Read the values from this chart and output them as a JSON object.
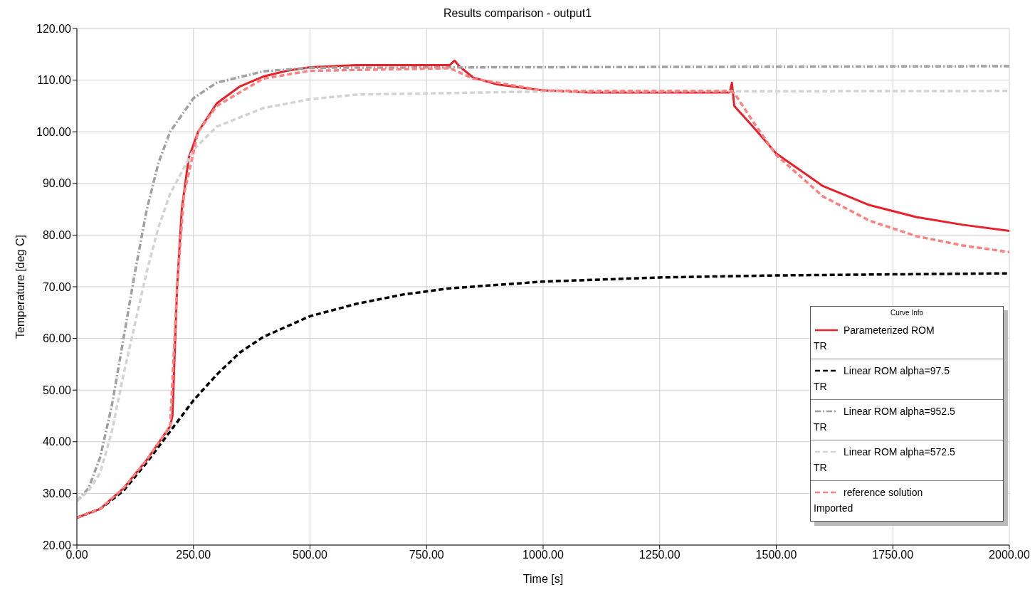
{
  "chart_data": {
    "type": "line",
    "title": "Results comparison - output1",
    "xlabel": "Time [s]",
    "ylabel": "Temperature [deg C]",
    "legend_title": "Curve Info",
    "annotations": [
      "TR",
      "TR",
      "TR",
      "TR",
      "Imported"
    ],
    "xlim": [
      0,
      2000
    ],
    "xticks": [
      {
        "value": 0,
        "label": "0.00"
      },
      {
        "value": 250,
        "label": "250.00"
      },
      {
        "value": 500,
        "label": "500.00"
      },
      {
        "value": 750,
        "label": "750.00"
      },
      {
        "value": 1000,
        "label": "1000.00"
      },
      {
        "value": 1250,
        "label": "1250.00"
      },
      {
        "value": 1500,
        "label": "1500.00"
      },
      {
        "value": 1750,
        "label": "1750.00"
      },
      {
        "value": 2000,
        "label": "2000.00"
      }
    ],
    "ylim": [
      20,
      120
    ],
    "yticks": [
      {
        "value": 20,
        "label": "20.00"
      },
      {
        "value": 30,
        "label": "30.00"
      },
      {
        "value": 40,
        "label": "40.00"
      },
      {
        "value": 50,
        "label": "50.00"
      },
      {
        "value": 60,
        "label": "60.00"
      },
      {
        "value": 70,
        "label": "70.00"
      },
      {
        "value": 80,
        "label": "80.00"
      },
      {
        "value": 90,
        "label": "90.00"
      },
      {
        "value": 100,
        "label": "100.00"
      },
      {
        "value": 110,
        "label": "110.00"
      },
      {
        "value": 120,
        "label": "120.00"
      }
    ],
    "grid": true,
    "legend": "bottom right",
    "marker": "none",
    "series": [
      {
        "name": "Parameterized ROM",
        "color": "#e8202a",
        "line_style": "solid",
        "x": [
          0,
          50,
          100,
          150,
          200,
          205,
          215,
          225,
          240,
          260,
          300,
          350,
          400,
          450,
          500,
          600,
          800,
          810,
          820,
          850,
          900,
          1000,
          1100,
          1400,
          1405,
          1410,
          1450,
          1500,
          1600,
          1700,
          1800,
          1900,
          2000
        ],
        "values": [
          25.3,
          27,
          31,
          36.5,
          43,
          45,
          70,
          85,
          95,
          100,
          105.5,
          108.8,
          110.7,
          111.8,
          112.5,
          112.9,
          112.9,
          113.8,
          112.7,
          110.5,
          109.2,
          108,
          107.6,
          107.6,
          109.5,
          105,
          101,
          95.8,
          89.5,
          85.8,
          83.5,
          82,
          80.8
        ]
      },
      {
        "name": "Linear ROM alpha=97.5",
        "color": "#000000",
        "line_style": "dashed",
        "x": [
          0,
          50,
          100,
          150,
          200,
          250,
          300,
          350,
          400,
          500,
          600,
          700,
          800,
          1000,
          1250,
          1500,
          1750,
          2000
        ],
        "values": [
          25.3,
          27,
          30.5,
          36,
          42,
          48,
          53,
          57.3,
          60.3,
          64.3,
          66.7,
          68.5,
          69.7,
          71,
          71.8,
          72.2,
          72.4,
          72.6
        ]
      },
      {
        "name": "Linear ROM alpha=952.5",
        "color": "#a0a0a0",
        "line_style": "dotted",
        "x": [
          0,
          25,
          50,
          75,
          100,
          125,
          150,
          175,
          200,
          250,
          300,
          400,
          500,
          2000
        ],
        "values": [
          28.5,
          31,
          37,
          47,
          60,
          73,
          85,
          94,
          100,
          106.5,
          109.5,
          111.7,
          112.4,
          112.7
        ]
      },
      {
        "name": "Linear ROM alpha=572.5",
        "color": "#d3d3d3",
        "line_style": "dashed",
        "x": [
          0,
          25,
          50,
          75,
          100,
          125,
          150,
          175,
          200,
          250,
          300,
          400,
          500,
          600,
          1000,
          2000
        ],
        "values": [
          28.5,
          30.5,
          34,
          42,
          53,
          63,
          73,
          81.5,
          88,
          96.5,
          101,
          104.6,
          106.3,
          107.2,
          107.8,
          107.9
        ]
      },
      {
        "name": "reference solution",
        "color": "#ff8080",
        "line_style": "dashed",
        "x": [
          0,
          50,
          100,
          150,
          200,
          215,
          230,
          260,
          300,
          400,
          500,
          800,
          850,
          1000,
          1100,
          1400,
          1410,
          1450,
          1500,
          1600,
          1700,
          1800,
          1900,
          2000
        ],
        "values": [
          25.3,
          27,
          31,
          36.5,
          43,
          70,
          88,
          100,
          105,
          110.3,
          111.8,
          112.3,
          110.3,
          108,
          107.9,
          107.9,
          107.5,
          102,
          95.5,
          87.5,
          82.8,
          79.8,
          78,
          76.7
        ]
      }
    ]
  }
}
